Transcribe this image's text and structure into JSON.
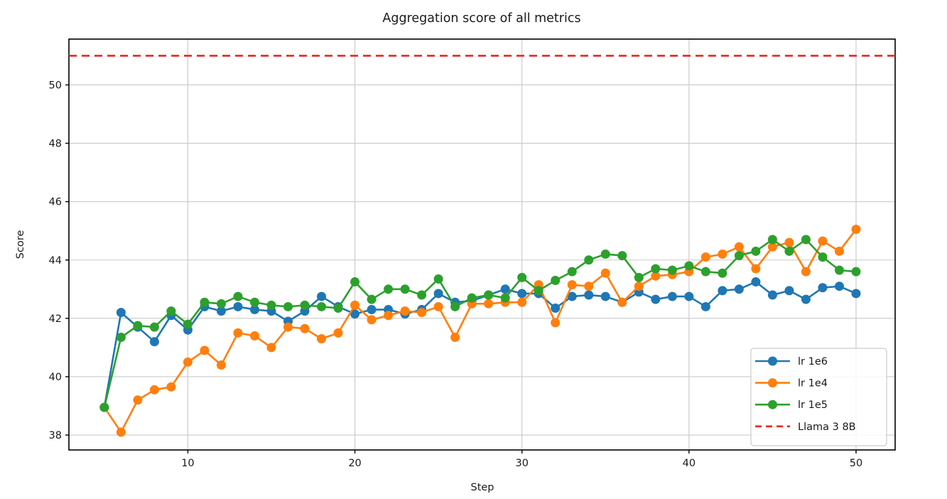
{
  "figure": {
    "background": "#ffffff"
  },
  "chart_data": {
    "type": "line",
    "title": "Aggregation score of all metrics",
    "xlabel": "Step",
    "ylabel": "Score",
    "grid": true,
    "grid_color": "#c9c9c9",
    "spine_color": "#000000",
    "legend_position": "lower right",
    "xlim": [
      2.88,
      52.34
    ],
    "ylim": [
      37.49,
      51.57
    ],
    "xticks": [
      10,
      20,
      30,
      40,
      50
    ],
    "yticks": [
      38,
      40,
      42,
      44,
      46,
      48,
      50
    ],
    "x": [
      5,
      6,
      7,
      8,
      9,
      10,
      11,
      12,
      13,
      14,
      15,
      16,
      17,
      18,
      19,
      20,
      21,
      22,
      23,
      24,
      25,
      26,
      27,
      28,
      29,
      30,
      31,
      32,
      33,
      34,
      35,
      36,
      37,
      38,
      39,
      40,
      41,
      42,
      43,
      44,
      45,
      46,
      47,
      48,
      49,
      50
    ],
    "series": [
      {
        "name": "lr 1e6",
        "color": "#1f77b4",
        "marker": "circle",
        "values": [
          38.95,
          42.2,
          41.7,
          41.2,
          42.1,
          41.6,
          42.4,
          42.25,
          42.4,
          42.3,
          42.25,
          41.9,
          42.25,
          42.75,
          42.4,
          42.15,
          42.3,
          42.3,
          42.15,
          42.3,
          42.85,
          42.55,
          42.6,
          42.8,
          43.0,
          42.85,
          42.85,
          42.35,
          42.75,
          42.8,
          42.75,
          42.55,
          42.9,
          42.65,
          42.75,
          42.75,
          42.4,
          42.95,
          43.0,
          43.25,
          42.8,
          42.95,
          42.65,
          43.05,
          43.1,
          42.85
        ]
      },
      {
        "name": "lr 1e4",
        "color": "#ff7f0e",
        "marker": "circle",
        "values": [
          38.95,
          38.1,
          39.2,
          39.55,
          39.65,
          40.5,
          40.9,
          40.4,
          41.5,
          41.4,
          41.0,
          41.7,
          41.65,
          41.3,
          41.5,
          42.45,
          41.95,
          42.1,
          42.25,
          42.2,
          42.4,
          41.35,
          42.5,
          42.5,
          42.55,
          42.55,
          43.15,
          41.85,
          43.15,
          43.1,
          43.55,
          42.55,
          43.1,
          43.45,
          43.5,
          43.6,
          44.1,
          44.2,
          44.45,
          43.7,
          44.45,
          44.6,
          43.6,
          44.65,
          44.3,
          45.05
        ]
      },
      {
        "name": "lr 1e5",
        "color": "#2ca02c",
        "marker": "circle",
        "values": [
          38.95,
          41.35,
          41.75,
          41.7,
          42.25,
          41.8,
          42.55,
          42.5,
          42.75,
          42.55,
          42.45,
          42.4,
          42.45,
          42.4,
          42.35,
          43.25,
          42.65,
          43.0,
          43.0,
          42.8,
          43.35,
          42.4,
          42.7,
          42.8,
          42.7,
          43.4,
          42.95,
          43.3,
          43.6,
          44.0,
          44.2,
          44.15,
          43.4,
          43.7,
          43.65,
          43.8,
          43.6,
          43.55,
          44.15,
          44.3,
          44.7,
          44.3,
          44.7,
          44.1,
          43.65,
          43.6
        ]
      }
    ],
    "hline": {
      "name": "Llama 3 8B",
      "value": 51.0,
      "color": "#e6281e",
      "style": "dashed"
    }
  }
}
